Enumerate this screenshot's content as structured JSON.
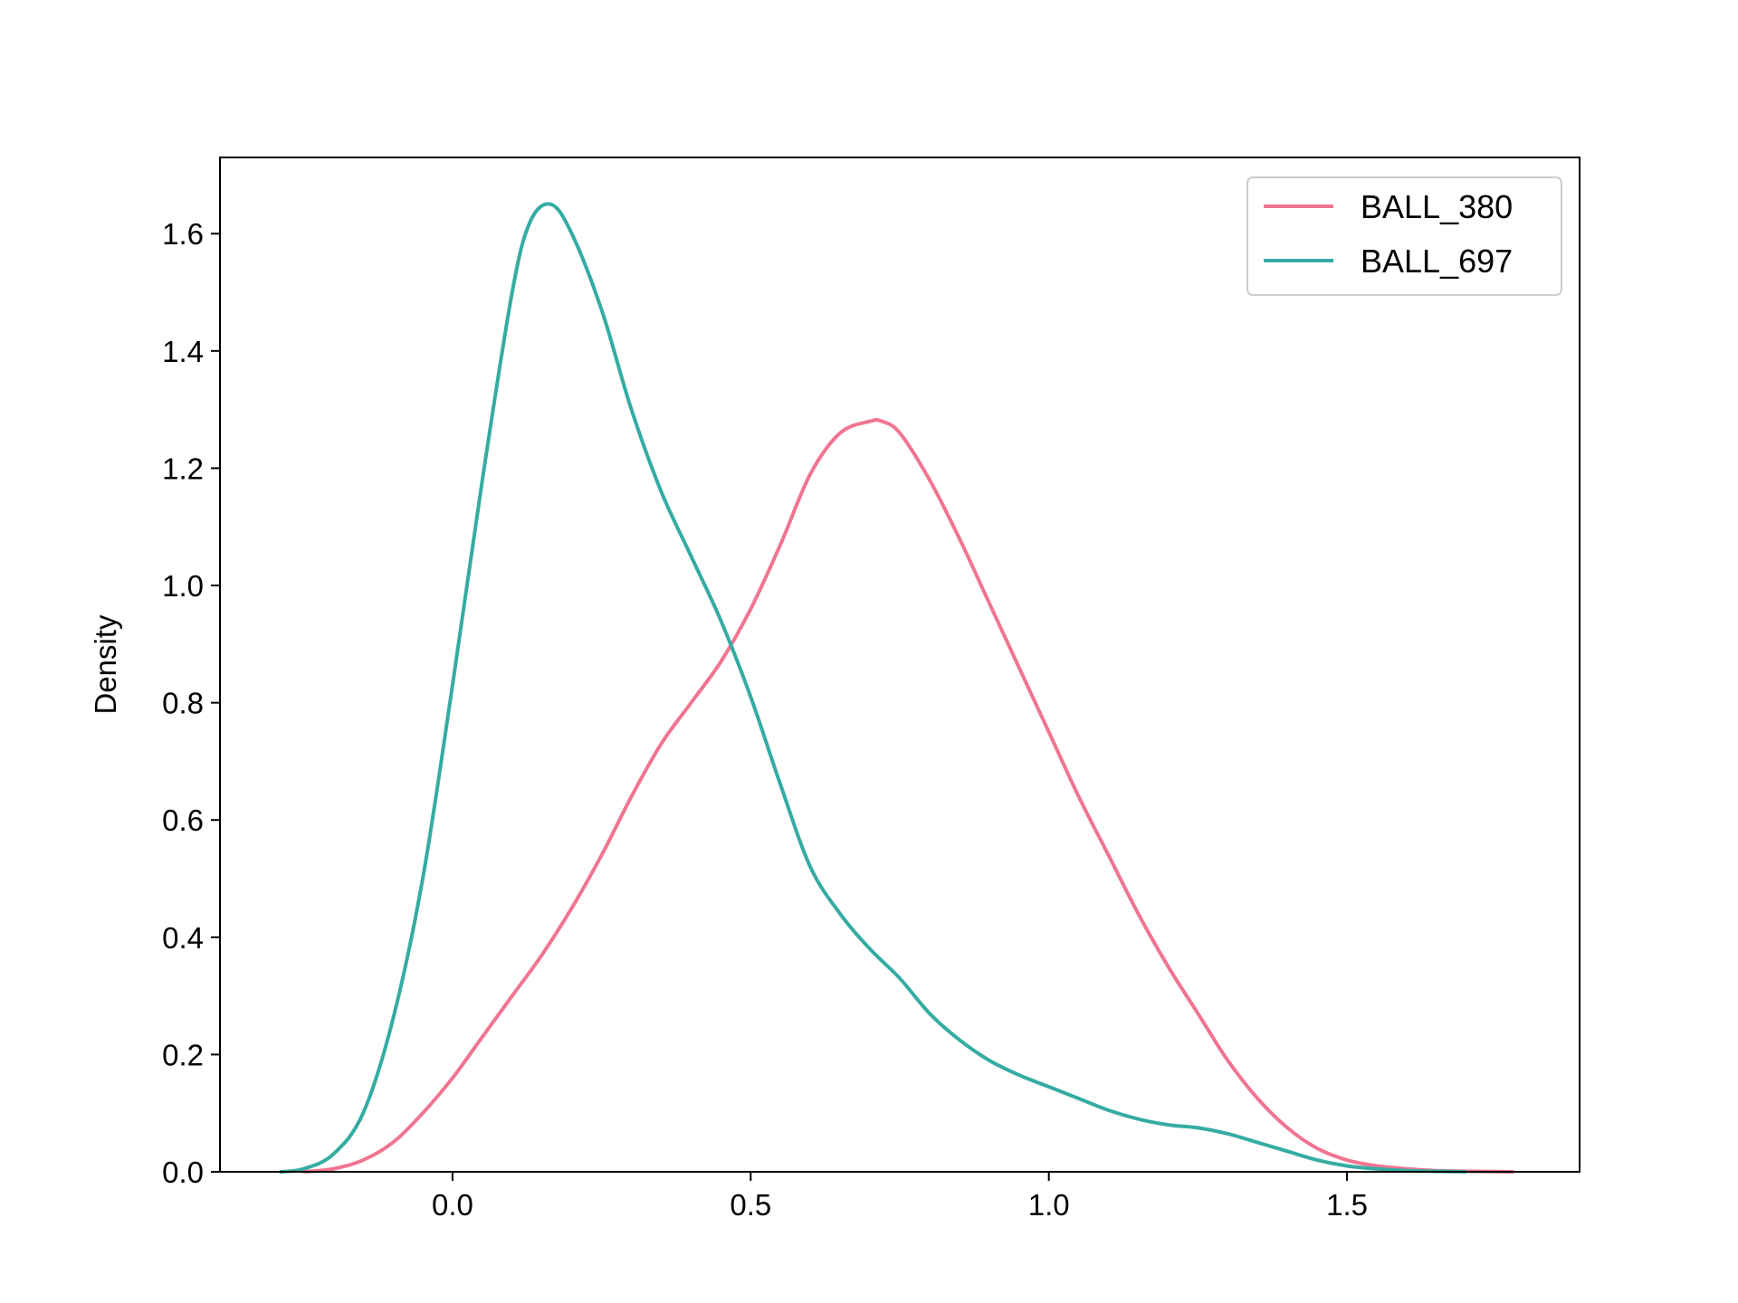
{
  "chart_data": {
    "type": "line",
    "title": "",
    "xlabel": "",
    "ylabel": "Density",
    "xlim": [
      -0.39,
      1.89
    ],
    "ylim": [
      0.0,
      1.73
    ],
    "xticks": [
      0.0,
      0.5,
      1.0,
      1.5
    ],
    "xtick_labels": [
      "0.0",
      "0.5",
      "1.0",
      "1.5"
    ],
    "yticks": [
      0.0,
      0.2,
      0.4,
      0.6,
      0.8,
      1.0,
      1.2,
      1.4,
      1.6
    ],
    "ytick_labels": [
      "0.0",
      "0.2",
      "0.4",
      "0.6",
      "0.8",
      "1.0",
      "1.2",
      "1.4",
      "1.6"
    ],
    "grid": false,
    "legend_position": "top-right",
    "series": [
      {
        "name": "BALL_380",
        "color": "#f07590",
        "x": [
          -0.25,
          -0.2,
          -0.15,
          -0.1,
          -0.05,
          0.0,
          0.05,
          0.1,
          0.15,
          0.2,
          0.25,
          0.3,
          0.35,
          0.4,
          0.45,
          0.5,
          0.55,
          0.6,
          0.65,
          0.7,
          0.72,
          0.75,
          0.8,
          0.85,
          0.9,
          0.95,
          1.0,
          1.05,
          1.1,
          1.15,
          1.2,
          1.25,
          1.3,
          1.35,
          1.4,
          1.45,
          1.5,
          1.55,
          1.6,
          1.65,
          1.7,
          1.78
        ],
        "values": [
          0.0,
          0.005,
          0.02,
          0.05,
          0.1,
          0.16,
          0.23,
          0.3,
          0.37,
          0.45,
          0.54,
          0.64,
          0.73,
          0.8,
          0.87,
          0.96,
          1.07,
          1.19,
          1.26,
          1.28,
          1.28,
          1.26,
          1.18,
          1.08,
          0.97,
          0.86,
          0.75,
          0.64,
          0.54,
          0.44,
          0.35,
          0.27,
          0.19,
          0.125,
          0.075,
          0.04,
          0.02,
          0.01,
          0.005,
          0.002,
          0.001,
          0.0
        ]
      },
      {
        "name": "BALL_697",
        "color": "#35aca2",
        "x": [
          -0.29,
          -0.25,
          -0.2,
          -0.15,
          -0.1,
          -0.05,
          0.0,
          0.05,
          0.1,
          0.13,
          0.165,
          0.2,
          0.25,
          0.3,
          0.35,
          0.4,
          0.45,
          0.5,
          0.55,
          0.6,
          0.65,
          0.7,
          0.75,
          0.8,
          0.85,
          0.9,
          0.95,
          1.0,
          1.05,
          1.1,
          1.15,
          1.2,
          1.25,
          1.3,
          1.35,
          1.4,
          1.45,
          1.5,
          1.55,
          1.6,
          1.65,
          1.7
        ],
        "values": [
          0.0,
          0.005,
          0.03,
          0.1,
          0.26,
          0.5,
          0.83,
          1.18,
          1.5,
          1.62,
          1.65,
          1.6,
          1.47,
          1.3,
          1.16,
          1.05,
          0.94,
          0.81,
          0.66,
          0.52,
          0.44,
          0.38,
          0.33,
          0.27,
          0.225,
          0.19,
          0.165,
          0.145,
          0.125,
          0.105,
          0.09,
          0.08,
          0.075,
          0.065,
          0.05,
          0.035,
          0.02,
          0.01,
          0.005,
          0.002,
          0.001,
          0.0
        ]
      }
    ]
  }
}
